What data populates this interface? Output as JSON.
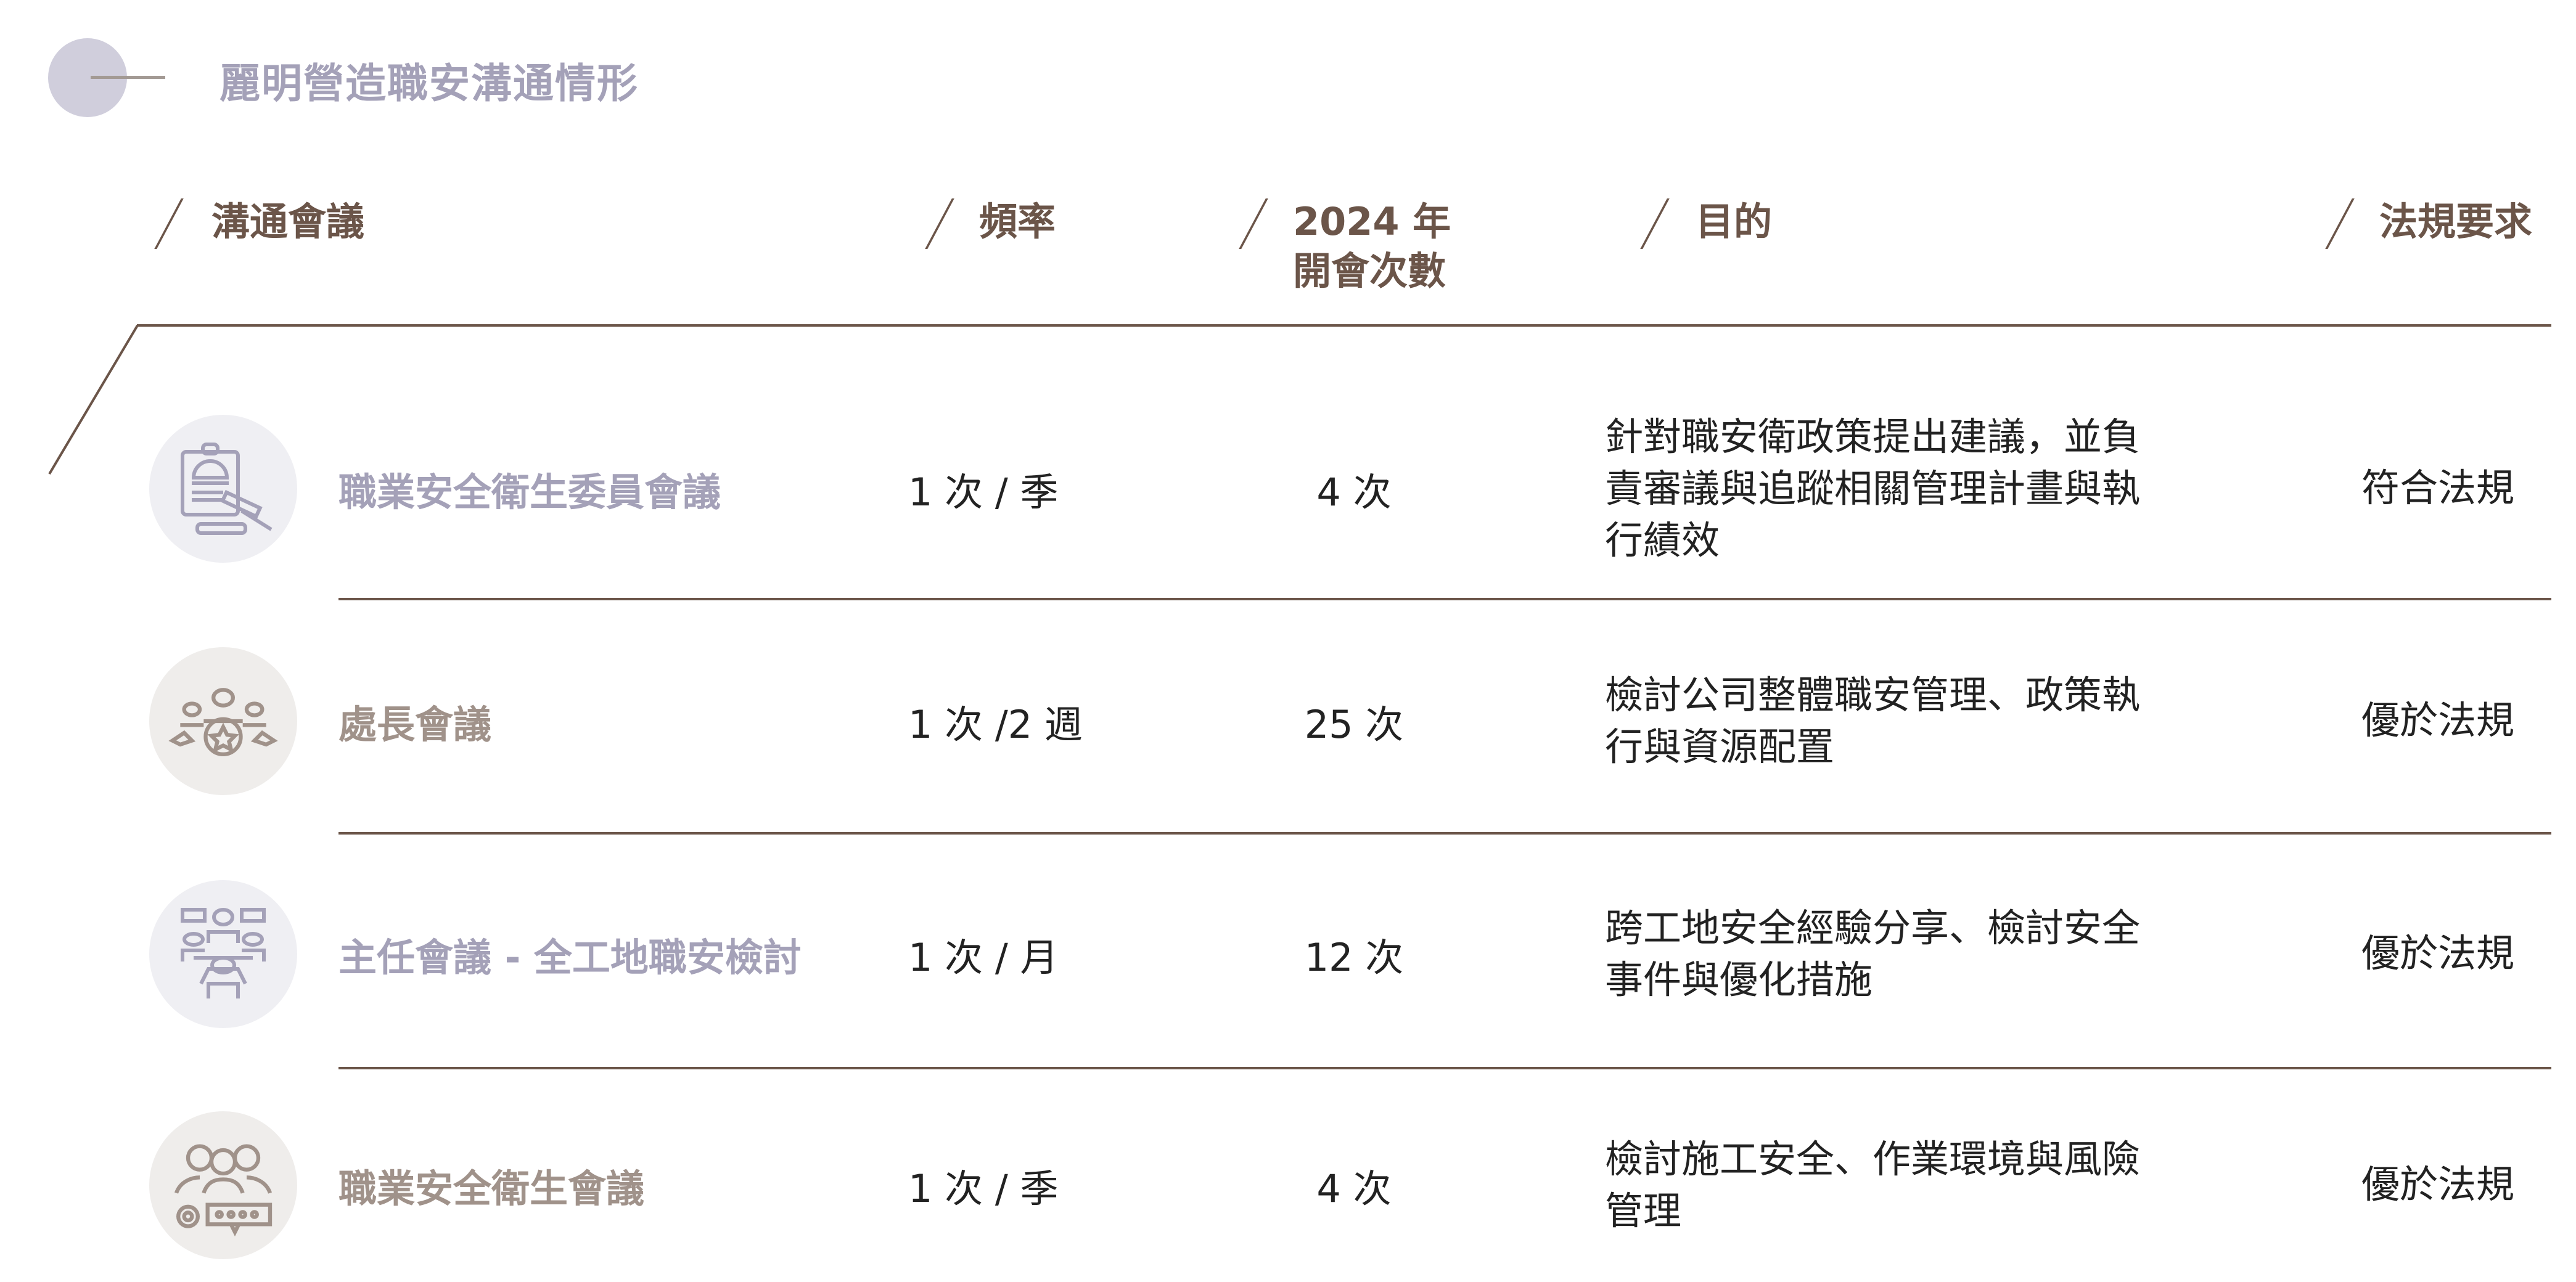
{
  "title": "麗明營造職安溝通情形",
  "headers": {
    "meeting": "溝通會議",
    "frequency": "頻率",
    "count_line1": "2024 年",
    "count_line2": "開會次數",
    "purpose": "目的",
    "regulation": "法規要求"
  },
  "colors": {
    "title": "#a4a1b8",
    "header": "#6b5549",
    "purple_name": "#a4a1b8",
    "brown_name": "#a0928a",
    "purple_circle": "#efeff3",
    "brown_circle": "#efedeb"
  },
  "rows": [
    {
      "icon": "clipboard-gavel-icon",
      "name": "職業安全衛生委員會議",
      "frequency": "1 次 / 季",
      "count": "4 次",
      "purpose": "針對職安衛政策提出建議，並負責審議與追蹤相關管理計畫與執行績效",
      "regulation": "符合法規"
    },
    {
      "icon": "team-star-icon",
      "name": "處長會議",
      "frequency": "1 次 /2 週",
      "count": "25 次",
      "purpose": "檢討公司整體職安管理、政策執行與資源配置",
      "regulation": "優於法規"
    },
    {
      "icon": "group-discussion-icon",
      "name": "主任會議 - 全工地職安檢討",
      "frequency": "1 次 / 月",
      "count": "12 次",
      "purpose": "跨工地安全經驗分享、檢討安全事件與優化措施",
      "regulation": "優於法規"
    },
    {
      "icon": "team-gear-chat-icon",
      "name": "職業安全衛生會議",
      "frequency": "1 次 / 季",
      "count": "4 次",
      "purpose": "檢討施工安全、作業環境與風險管理",
      "regulation": "優於法規"
    }
  ]
}
